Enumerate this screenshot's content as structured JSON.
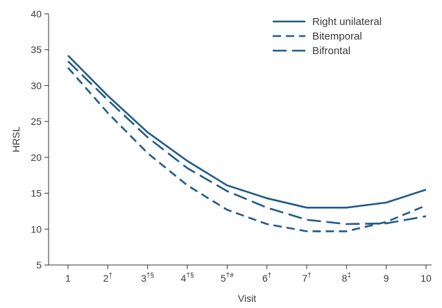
{
  "chart_data": {
    "type": "line",
    "xlabel": "Visit",
    "ylabel": "HRSL",
    "ylim": [
      5,
      40
    ],
    "yticks": [
      5,
      10,
      15,
      20,
      25,
      30,
      35,
      40
    ],
    "x": [
      1,
      2,
      3,
      4,
      5,
      6,
      7,
      8,
      9,
      10
    ],
    "xtick_labels": [
      {
        "base": "1",
        "sup": ""
      },
      {
        "base": "2",
        "sup": "†"
      },
      {
        "base": "3",
        "sup": "†§"
      },
      {
        "base": "4",
        "sup": "†§"
      },
      {
        "base": "5",
        "sup": "†#"
      },
      {
        "base": "6",
        "sup": "†"
      },
      {
        "base": "7",
        "sup": "†"
      },
      {
        "base": "8",
        "sup": "‡"
      },
      {
        "base": "9",
        "sup": ""
      },
      {
        "base": "10",
        "sup": ""
      }
    ],
    "grid": false,
    "legend_position": "top-right",
    "color": "#1f5a8a",
    "series": [
      {
        "name": "Right unilateral",
        "style": "solid",
        "values": [
          34.2,
          28.6,
          23.5,
          19.5,
          16.1,
          14.3,
          13.0,
          13.0,
          13.7,
          15.5
        ]
      },
      {
        "name": "Bitemporal",
        "style": "dashed",
        "values": [
          32.5,
          26.2,
          20.6,
          16.1,
          12.7,
          10.7,
          9.7,
          9.7,
          11.0,
          13.3
        ]
      },
      {
        "name": "Bifrontal",
        "style": "dashed-long",
        "values": [
          33.4,
          28.0,
          22.8,
          18.5,
          15.3,
          13.0,
          11.3,
          10.7,
          10.8,
          11.8
        ]
      }
    ]
  }
}
